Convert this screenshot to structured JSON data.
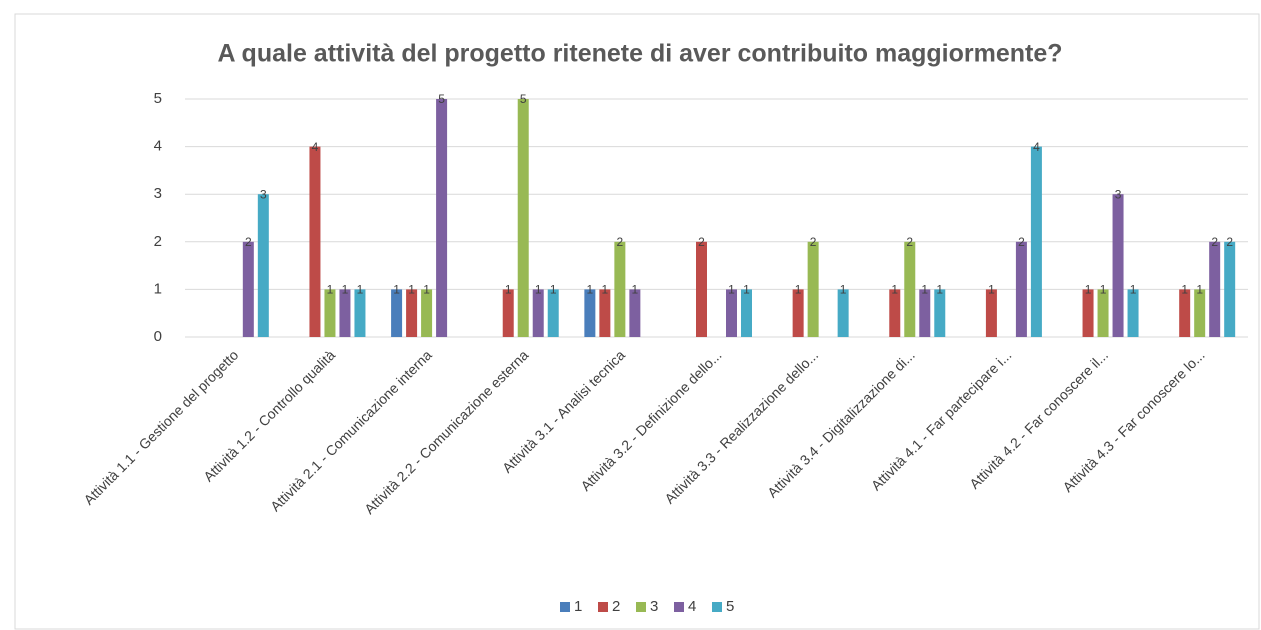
{
  "chart_data": {
    "type": "bar",
    "title": "A quale attività del progetto ritenete di aver contribuito maggiormente?",
    "categories": [
      "Attività 1.1 - Gestione del progetto",
      "Attività 1.2 - Controllo qualità",
      "Attività 2.1 - Comunicazione interna",
      "Attività 2.2 - Comunicazione esterna",
      "Attività 3.1 - Analisi tecnica",
      "Attività 3.2 - Definizione dello...",
      "Attività 3.3 - Realizzazione dello...",
      "Attività 3.4 - Digitalizzazione di...",
      "Attività 4.1 - Far partecipare i...",
      "Attività 4.2 - Far conoscere il...",
      "Attività 4.3 - Far conoscere lo..."
    ],
    "series": [
      {
        "name": "1",
        "color": "#4a7ebb",
        "values": [
          null,
          null,
          1,
          null,
          1,
          null,
          null,
          null,
          null,
          null,
          null
        ]
      },
      {
        "name": "2",
        "color": "#be4b48",
        "values": [
          null,
          4,
          1,
          1,
          1,
          2,
          1,
          1,
          1,
          1,
          1
        ]
      },
      {
        "name": "3",
        "color": "#98b954",
        "values": [
          null,
          1,
          1,
          5,
          2,
          null,
          2,
          2,
          null,
          1,
          1
        ]
      },
      {
        "name": "4",
        "color": "#7d60a0",
        "values": [
          2,
          1,
          5,
          1,
          1,
          1,
          null,
          1,
          2,
          3,
          2
        ]
      },
      {
        "name": "5",
        "color": "#46aac5",
        "values": [
          3,
          1,
          null,
          1,
          null,
          1,
          1,
          1,
          4,
          1,
          2
        ]
      }
    ],
    "ylim": [
      0,
      5
    ],
    "yticks": [
      0,
      1,
      2,
      3,
      4,
      5
    ],
    "grid": true,
    "legend": "bottom"
  }
}
